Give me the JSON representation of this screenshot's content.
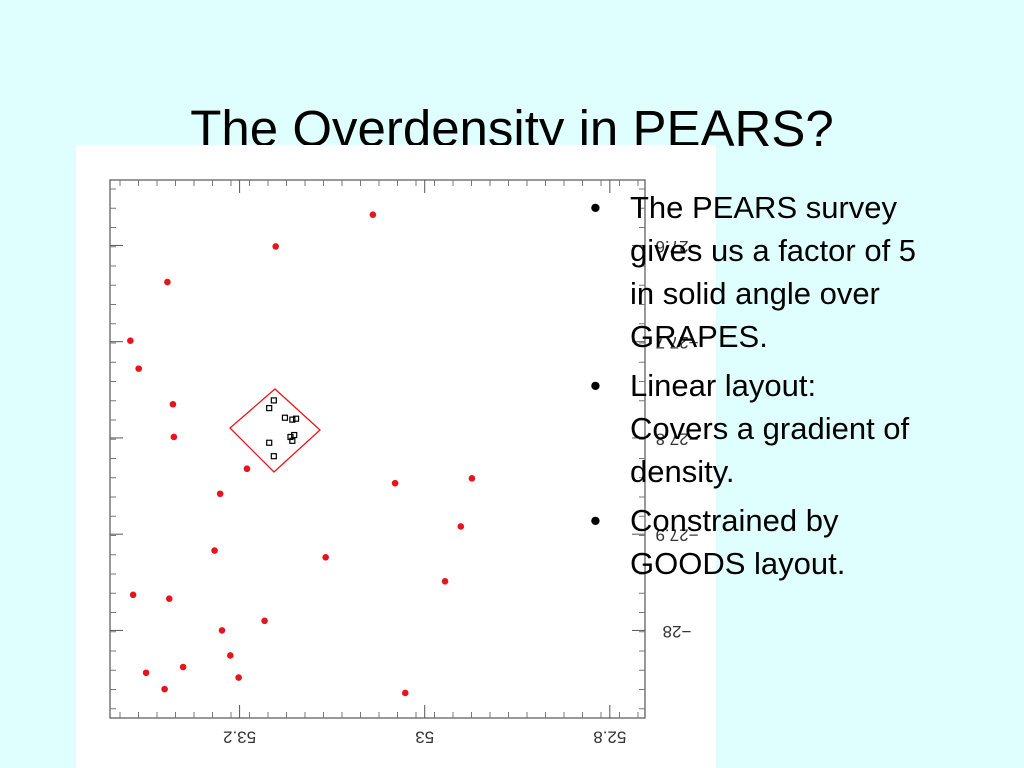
{
  "slide": {
    "title": "The Overdensity in PEARS?",
    "bullets": [
      "The PEARS survey gives us a factor of 5 in solid angle over GRAPES.",
      "Linear layout: Covers a gradient of density.",
      "Constrained by GOODS layout."
    ]
  },
  "chart_data": {
    "type": "scatter",
    "xlim": [
      53.34,
      52.762
    ],
    "ylim": [
      -28.091,
      -27.532
    ],
    "xticks": [
      53.2,
      53,
      52.8
    ],
    "yticks": [
      {
        "value": -27.6,
        "label": "−27.6"
      },
      {
        "value": -27.7,
        "label": "−27.7"
      },
      {
        "value": -27.8,
        "label": "−27.8"
      },
      {
        "value": -27.9,
        "label": "−27.9"
      },
      {
        "value": -28,
        "label": "−28"
      }
    ],
    "series": [
      {
        "color": "#e8141c",
        "marker": "circle",
        "x": [
          53.056,
          53.161,
          53.278,
          53.318,
          53.309,
          53.272,
          53.271,
          53.192,
          53.221,
          53.032,
          52.949,
          52.961,
          53.227,
          53.107,
          52.978,
          53.315,
          53.276,
          53.173,
          53.219,
          53.21,
          53.301,
          53.261,
          53.201,
          53.281,
          53.021
        ],
        "values": [
          -27.568,
          -27.601,
          -27.638,
          -27.699,
          -27.728,
          -27.765,
          -27.799,
          -27.832,
          -27.858,
          -27.847,
          -27.842,
          -27.892,
          -27.917,
          -27.924,
          -27.949,
          -27.963,
          -27.967,
          -27.99,
          -28.0,
          -28.026,
          -28.044,
          -28.038,
          -28.049,
          -28.061,
          -28.065
        ]
      },
      {
        "color": "#000000",
        "marker": "square",
        "x": [
          53.168,
          53.163,
          53.151,
          53.143,
          53.139,
          53.145,
          53.141,
          53.143,
          53.168,
          53.163
        ],
        "values": [
          -27.769,
          -27.761,
          -27.779,
          -27.781,
          -27.78,
          -27.799,
          -27.797,
          -27.803,
          -27.805,
          -27.819
        ]
      }
    ]
  }
}
